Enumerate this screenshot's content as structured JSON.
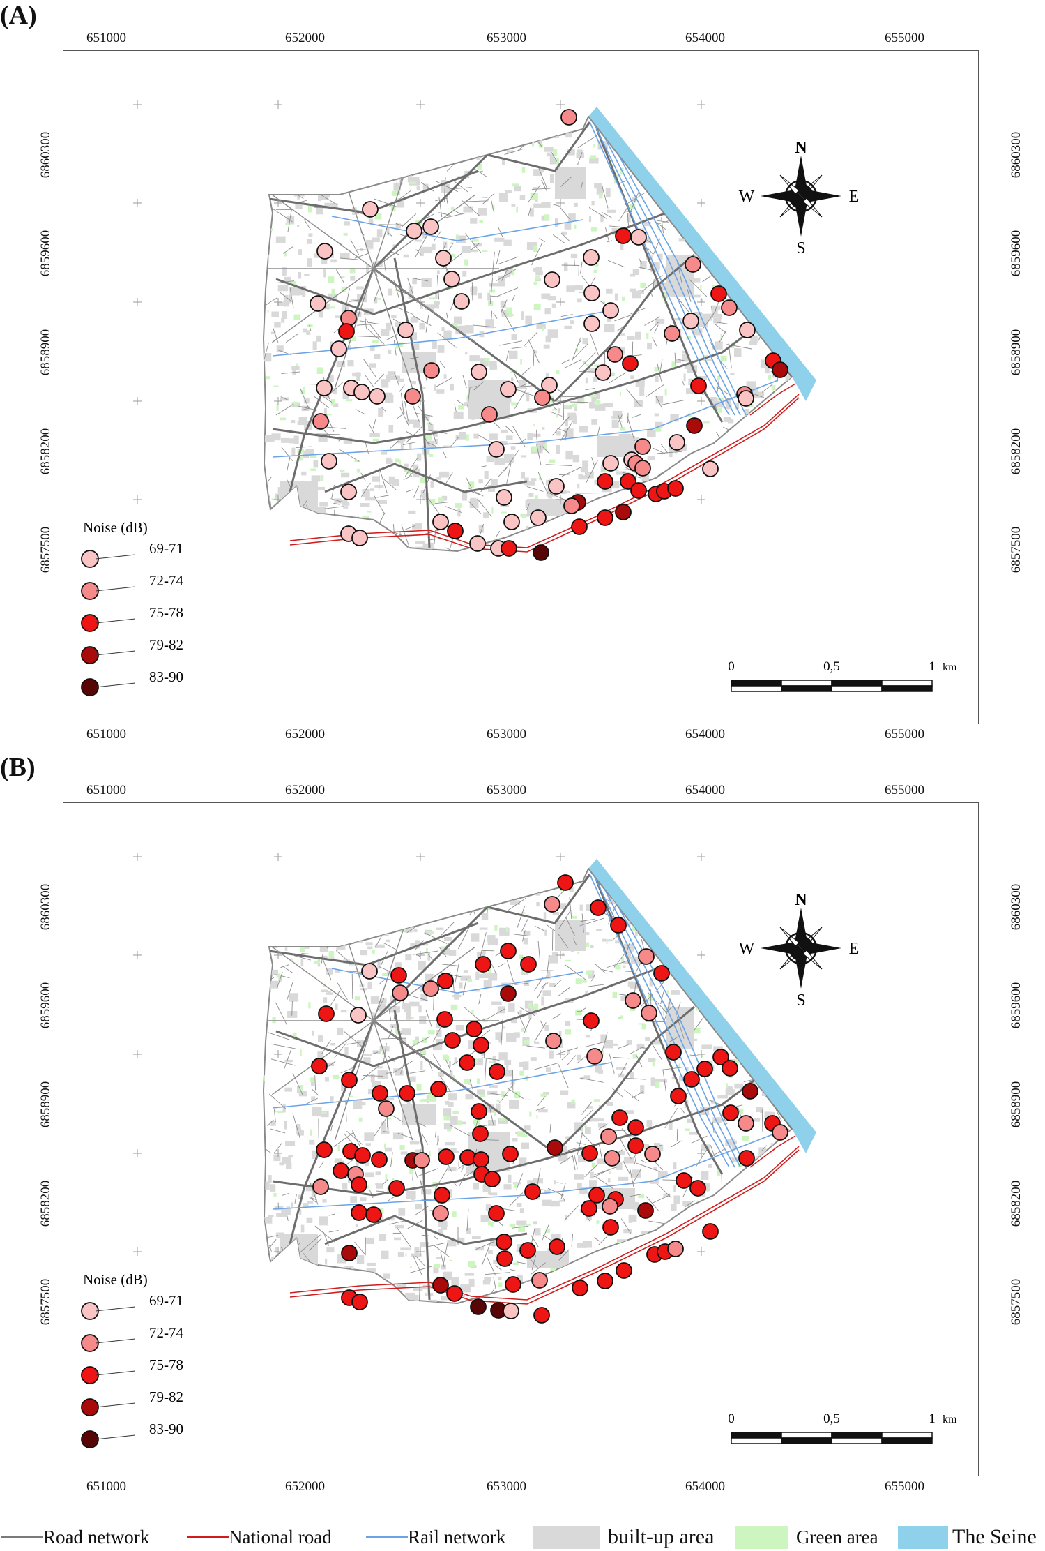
{
  "panels": [
    {
      "label": "(A)",
      "noise_legend": {
        "title": "Noise (dB)",
        "classes": [
          {
            "label": "69-71",
            "color": "#FBC4C4"
          },
          {
            "label": "72-74",
            "color": "#F68A8A"
          },
          {
            "label": "75-78",
            "color": "#EE1515"
          },
          {
            "label": "79-82",
            "color": "#A90B0B"
          },
          {
            "label": "83-90",
            "color": "#5A0505"
          }
        ]
      },
      "counts_by_class": [
        38,
        22,
        26,
        3,
        2
      ]
    },
    {
      "label": "(B)",
      "noise_legend": {
        "title": "Noise (dB)",
        "classes": [
          {
            "label": "69-71",
            "color": "#FBC4C4"
          },
          {
            "label": "72-74",
            "color": "#F68A8A"
          },
          {
            "label": "75-78",
            "color": "#EE1515"
          },
          {
            "label": "79-82",
            "color": "#A90B0B"
          },
          {
            "label": "83-90",
            "color": "#5A0505"
          }
        ]
      },
      "counts_by_class": [
        4,
        22,
        78,
        6,
        4
      ]
    }
  ],
  "grid": {
    "x_labels": [
      "651000",
      "652000",
      "653000",
      "654000",
      "655000"
    ],
    "y_labels": [
      "6860300",
      "6859600",
      "6858900",
      "6858200",
      "6857500"
    ]
  },
  "north_arrow": {
    "n": "N",
    "s": "S",
    "e": "E",
    "w": "W"
  },
  "scale_bar": {
    "labels": [
      "0",
      "0,5",
      "1"
    ],
    "unit": "km"
  },
  "bottom_legend": [
    {
      "label": "Road network",
      "symbol": "line",
      "color": "#7a7a7a"
    },
    {
      "label": "National road",
      "symbol": "line",
      "color": "#d01c1c"
    },
    {
      "label": "Rail network",
      "symbol": "line",
      "color": "#6aa3e6"
    },
    {
      "label": "built-up area",
      "symbol": "box",
      "color": "#d9d9d9"
    },
    {
      "label": "Green area",
      "symbol": "box",
      "color": "#ccf5bf"
    },
    {
      "label": "The Seine",
      "symbol": "box",
      "color": "#8fd1ea"
    }
  ],
  "colors": {
    "road": "#8c8c8c",
    "major_road": "#6d6d6d",
    "national_road": "#d01c1c",
    "rail": "#6aa3e6",
    "built": "#d9d9d9",
    "green": "#ccf5bf",
    "seine": "#8fd1ea"
  }
}
